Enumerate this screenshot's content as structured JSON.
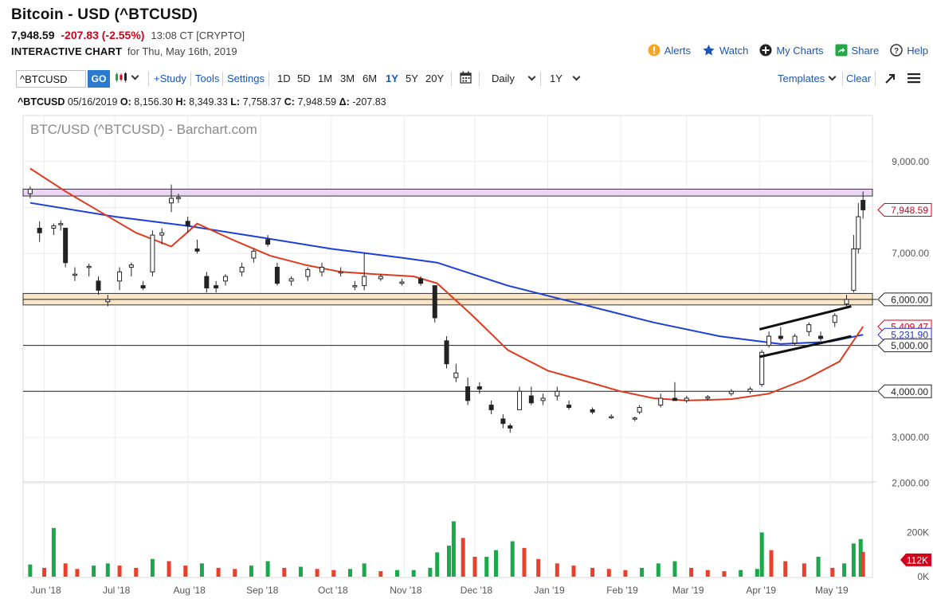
{
  "header": {
    "title": "Bitcoin - USD (^BTCUSD)",
    "last": "7,948.59",
    "change": "-207.83 (-2.55%)",
    "time": "13:08 CT [CRYPTO]",
    "chart_label": "INTERACTIVE CHART",
    "chart_date": "for Thu, May 16th, 2019"
  },
  "actions": [
    {
      "name": "alerts",
      "label": "Alerts",
      "icon": "alert-icon",
      "color": "#f5a623"
    },
    {
      "name": "watch",
      "label": "Watch",
      "icon": "star-icon",
      "color": "#1a56b8"
    },
    {
      "name": "mycharts",
      "label": "My Charts",
      "icon": "plus-circle-icon",
      "color": "#222222"
    },
    {
      "name": "share",
      "label": "Share",
      "icon": "share-icon",
      "color": "#22a845"
    },
    {
      "name": "help",
      "label": "Help",
      "icon": "help-icon",
      "color": "#333333"
    }
  ],
  "toolbar": {
    "symbol_value": "^BTCUSD",
    "go_label": "GO",
    "study_label": "+Study",
    "tools_label": "Tools",
    "settings_label": "Settings",
    "periods": [
      "1D",
      "5D",
      "1M",
      "3M",
      "6M",
      "1Y",
      "5Y",
      "20Y"
    ],
    "active_period": "1Y",
    "interval_label": "Daily",
    "range_label": "1Y",
    "templates_label": "Templates",
    "clear_label": "Clear"
  },
  "ohlc": {
    "symbol": "^BTCUSD",
    "date": "05/16/2019",
    "open": "8,156.30",
    "high": "8,349.33",
    "low": "7,758.37",
    "close": "7,948.59",
    "delta": "-207.83"
  },
  "chart_data": {
    "type": "candlestick",
    "title": "BTC/USD (^BTCUSD) - Barchart.com",
    "x_labels": [
      "Jun '18",
      "Jul '18",
      "Aug '18",
      "Sep '18",
      "Oct '18",
      "Nov '18",
      "Dec '18",
      "Jan '19",
      "Feb '19",
      "Mar '19",
      "Apr '19",
      "May '19"
    ],
    "price_ticks": [
      "9,000.00",
      "7,000.00",
      "3,000.00",
      "2,000.00"
    ],
    "price_ylim": [
      2000,
      9000
    ],
    "volume_ticks": [
      "200K",
      "0K"
    ],
    "volume_ylim": [
      0,
      250
    ],
    "axis_tags": [
      {
        "value": 7948.59,
        "label": "7,948.59",
        "color": "#d0021b"
      },
      {
        "value": 6000,
        "label": "6,000.00",
        "color": "#222222"
      },
      {
        "value": 5409.47,
        "label": "5,409.47",
        "color": "#d0021b"
      },
      {
        "value": 5231.9,
        "label": "5,231.90",
        "color": "#2233cc"
      },
      {
        "value": 5000,
        "label": "5,000.00",
        "color": "#222222"
      },
      {
        "value": 4000,
        "label": "4,000.00",
        "color": "#222222"
      }
    ],
    "volume_tag": {
      "value": 112,
      "label": "112K",
      "color": "#d0021b"
    },
    "horizontal_lines": [
      6000,
      5000,
      4000
    ],
    "resistance_zone": [
      8250,
      8400
    ],
    "support_zone": [
      5880,
      6130
    ],
    "channel": {
      "upper": [
        [
          "2019-04-01",
          5350
        ],
        [
          "2019-05-10",
          5850
        ]
      ],
      "lower": [
        [
          "2019-04-01",
          4750
        ],
        [
          "2019-05-10",
          5200
        ]
      ]
    },
    "candles": [
      [
        "2018-05-26",
        8300,
        8460,
        8200,
        8400
      ],
      [
        "2018-05-30",
        7550,
        7700,
        7250,
        7450
      ],
      [
        "2018-06-05",
        7550,
        7650,
        7400,
        7600
      ],
      [
        "2018-06-08",
        7650,
        7720,
        7500,
        7650
      ],
      [
        "2018-06-10",
        7550,
        7550,
        6700,
        6800
      ],
      [
        "2018-06-14",
        6550,
        6700,
        6400,
        6550
      ],
      [
        "2018-06-20",
        6700,
        6780,
        6500,
        6720
      ],
      [
        "2018-06-24",
        6400,
        6500,
        6100,
        6200
      ],
      [
        "2018-06-28",
        5950,
        6100,
        5850,
        6000
      ],
      [
        "2018-07-03",
        6400,
        6700,
        6200,
        6600
      ],
      [
        "2018-07-08",
        6700,
        6800,
        6500,
        6750
      ],
      [
        "2018-07-13",
        6300,
        6400,
        6200,
        6250
      ],
      [
        "2018-07-17",
        6600,
        7500,
        6500,
        7400
      ],
      [
        "2018-07-21",
        7400,
        7550,
        7200,
        7450
      ],
      [
        "2018-07-25",
        8100,
        8500,
        7900,
        8200
      ],
      [
        "2018-07-28",
        8200,
        8300,
        8100,
        8220
      ],
      [
        "2018-08-01",
        7700,
        7800,
        7450,
        7600
      ],
      [
        "2018-08-05",
        7100,
        7300,
        7000,
        7050
      ],
      [
        "2018-08-09",
        6500,
        6600,
        6150,
        6250
      ],
      [
        "2018-08-13",
        6300,
        6400,
        6150,
        6250
      ],
      [
        "2018-08-17",
        6400,
        6550,
        6300,
        6500
      ],
      [
        "2018-08-24",
        6600,
        6800,
        6500,
        6700
      ],
      [
        "2018-08-29",
        6900,
        7100,
        6800,
        7050
      ],
      [
        "2018-09-04",
        7300,
        7400,
        7150,
        7200
      ],
      [
        "2018-09-08",
        6700,
        6800,
        6300,
        6350
      ],
      [
        "2018-09-14",
        6400,
        6500,
        6300,
        6450
      ],
      [
        "2018-09-21",
        6500,
        6700,
        6400,
        6650
      ],
      [
        "2018-09-27",
        6600,
        6800,
        6500,
        6700
      ],
      [
        "2018-10-05",
        6600,
        6700,
        6500,
        6600
      ],
      [
        "2018-10-11",
        6300,
        6400,
        6200,
        6300
      ],
      [
        "2018-10-15",
        6300,
        7000,
        6200,
        6500
      ],
      [
        "2018-10-22",
        6450,
        6550,
        6400,
        6500
      ],
      [
        "2018-10-31",
        6350,
        6450,
        6300,
        6380
      ],
      [
        "2018-11-08",
        6450,
        6500,
        6300,
        6350
      ],
      [
        "2018-11-14",
        6300,
        6300,
        5500,
        5600
      ],
      [
        "2018-11-19",
        5100,
        5200,
        4500,
        4600
      ],
      [
        "2018-11-23",
        4300,
        4600,
        4200,
        4400
      ],
      [
        "2018-11-28",
        4100,
        4300,
        3700,
        3800
      ],
      [
        "2018-12-03",
        4100,
        4200,
        3950,
        4050
      ],
      [
        "2018-12-08",
        3700,
        3800,
        3500,
        3600
      ],
      [
        "2018-12-13",
        3400,
        3500,
        3200,
        3300
      ],
      [
        "2018-12-16",
        3250,
        3300,
        3100,
        3200
      ],
      [
        "2018-12-20",
        3600,
        4100,
        3600,
        4000
      ],
      [
        "2018-12-25",
        3900,
        4100,
        3700,
        3750
      ],
      [
        "2018-12-30",
        3800,
        3950,
        3700,
        3850
      ],
      [
        "2019-01-05",
        3900,
        4100,
        3800,
        4000
      ],
      [
        "2019-01-10",
        3700,
        3800,
        3600,
        3650
      ],
      [
        "2019-01-20",
        3600,
        3650,
        3500,
        3550
      ],
      [
        "2019-01-28",
        3450,
        3500,
        3400,
        3450
      ],
      [
        "2019-02-07",
        3400,
        3450,
        3350,
        3420
      ],
      [
        "2019-02-09",
        3550,
        3700,
        3500,
        3650
      ],
      [
        "2019-02-18",
        3700,
        3950,
        3650,
        3850
      ],
      [
        "2019-02-24",
        3850,
        4200,
        3800,
        3800
      ],
      [
        "2019-03-01",
        3800,
        3900,
        3750,
        3850
      ],
      [
        "2019-03-10",
        3850,
        3920,
        3800,
        3880
      ],
      [
        "2019-03-20",
        3950,
        4050,
        3900,
        4000
      ],
      [
        "2019-03-28",
        4000,
        4100,
        3950,
        4050
      ],
      [
        "2019-04-02",
        4150,
        4900,
        4100,
        4850
      ],
      [
        "2019-04-05",
        5000,
        5300,
        4950,
        5200
      ],
      [
        "2019-04-10",
        5200,
        5400,
        5100,
        5150
      ],
      [
        "2019-04-16",
        5050,
        5250,
        5000,
        5200
      ],
      [
        "2019-04-22",
        5300,
        5500,
        5200,
        5450
      ],
      [
        "2019-04-27",
        5200,
        5300,
        5100,
        5150
      ],
      [
        "2019-05-03",
        5500,
        5700,
        5400,
        5650
      ],
      [
        "2019-05-08",
        5900,
        6100,
        5800,
        6000
      ],
      [
        "2019-05-11",
        6200,
        7400,
        6150,
        7100
      ],
      [
        "2019-05-13",
        7100,
        8100,
        7000,
        7800
      ],
      [
        "2019-05-15",
        8156.3,
        8349.33,
        7758.37,
        7948.59
      ]
    ],
    "volume_bars": [
      [
        "2018-05-26",
        55
      ],
      [
        "2018-06-01",
        40
      ],
      [
        "2018-06-05",
        220
      ],
      [
        "2018-06-10",
        60
      ],
      [
        "2018-06-15",
        35
      ],
      [
        "2018-06-22",
        50
      ],
      [
        "2018-06-28",
        60
      ],
      [
        "2018-07-03",
        50
      ],
      [
        "2018-07-10",
        40
      ],
      [
        "2018-07-17",
        80
      ],
      [
        "2018-07-24",
        70
      ],
      [
        "2018-07-31",
        50
      ],
      [
        "2018-08-07",
        60
      ],
      [
        "2018-08-14",
        40
      ],
      [
        "2018-08-21",
        35
      ],
      [
        "2018-08-28",
        50
      ],
      [
        "2018-09-04",
        70
      ],
      [
        "2018-09-11",
        40
      ],
      [
        "2018-09-18",
        45
      ],
      [
        "2018-09-25",
        35
      ],
      [
        "2018-10-02",
        30
      ],
      [
        "2018-10-09",
        35
      ],
      [
        "2018-10-15",
        60
      ],
      [
        "2018-10-22",
        25
      ],
      [
        "2018-10-29",
        30
      ],
      [
        "2018-11-05",
        30
      ],
      [
        "2018-11-12",
        40
      ],
      [
        "2018-11-15",
        110
      ],
      [
        "2018-11-20",
        140
      ],
      [
        "2018-11-22",
        250
      ],
      [
        "2018-11-26",
        175
      ],
      [
        "2018-12-01",
        90
      ],
      [
        "2018-12-06",
        90
      ],
      [
        "2018-12-10",
        120
      ],
      [
        "2018-12-17",
        160
      ],
      [
        "2018-12-22",
        130
      ],
      [
        "2018-12-28",
        80
      ],
      [
        "2019-01-05",
        60
      ],
      [
        "2019-01-12",
        50
      ],
      [
        "2019-01-20",
        40
      ],
      [
        "2019-01-27",
        35
      ],
      [
        "2019-02-03",
        30
      ],
      [
        "2019-02-10",
        40
      ],
      [
        "2019-02-17",
        60
      ],
      [
        "2019-02-24",
        70
      ],
      [
        "2019-03-03",
        40
      ],
      [
        "2019-03-10",
        30
      ],
      [
        "2019-03-17",
        25
      ],
      [
        "2019-03-24",
        30
      ],
      [
        "2019-03-31",
        35
      ],
      [
        "2019-04-02",
        200
      ],
      [
        "2019-04-06",
        120
      ],
      [
        "2019-04-12",
        70
      ],
      [
        "2019-04-20",
        60
      ],
      [
        "2019-04-26",
        90
      ],
      [
        "2019-05-02",
        40
      ],
      [
        "2019-05-07",
        60
      ],
      [
        "2019-05-11",
        150
      ],
      [
        "2019-05-14",
        170
      ],
      [
        "2019-05-15",
        112
      ]
    ],
    "ma_red": [
      [
        "2018-05-26",
        8850
      ],
      [
        "2018-06-10",
        8350
      ],
      [
        "2018-06-25",
        7900
      ],
      [
        "2018-07-10",
        7450
      ],
      [
        "2018-07-25",
        7150
      ],
      [
        "2018-08-05",
        7650
      ],
      [
        "2018-08-20",
        7300
      ],
      [
        "2018-09-05",
        6950
      ],
      [
        "2018-09-20",
        6750
      ],
      [
        "2018-10-05",
        6600
      ],
      [
        "2018-10-20",
        6550
      ],
      [
        "2018-11-05",
        6500
      ],
      [
        "2018-11-15",
        6350
      ],
      [
        "2018-11-30",
        5650
      ],
      [
        "2018-12-15",
        4900
      ],
      [
        "2019-01-01",
        4450
      ],
      [
        "2019-01-15",
        4250
      ],
      [
        "2019-02-01",
        4000
      ],
      [
        "2019-02-15",
        3850
      ],
      [
        "2019-03-01",
        3800
      ],
      [
        "2019-03-20",
        3830
      ],
      [
        "2019-04-05",
        3950
      ],
      [
        "2019-04-20",
        4250
      ],
      [
        "2019-05-05",
        4650
      ],
      [
        "2019-05-15",
        5409.47
      ]
    ],
    "ma_blue": [
      [
        "2018-05-26",
        8100
      ],
      [
        "2018-07-01",
        7800
      ],
      [
        "2018-08-01",
        7600
      ],
      [
        "2018-09-01",
        7350
      ],
      [
        "2018-10-01",
        7100
      ],
      [
        "2018-11-01",
        6900
      ],
      [
        "2018-11-15",
        6800
      ],
      [
        "2018-12-15",
        6300
      ],
      [
        "2019-01-15",
        5900
      ],
      [
        "2019-02-15",
        5500
      ],
      [
        "2019-03-15",
        5200
      ],
      [
        "2019-04-10",
        5030
      ],
      [
        "2019-05-01",
        5080
      ],
      [
        "2019-05-15",
        5231.9
      ]
    ]
  }
}
